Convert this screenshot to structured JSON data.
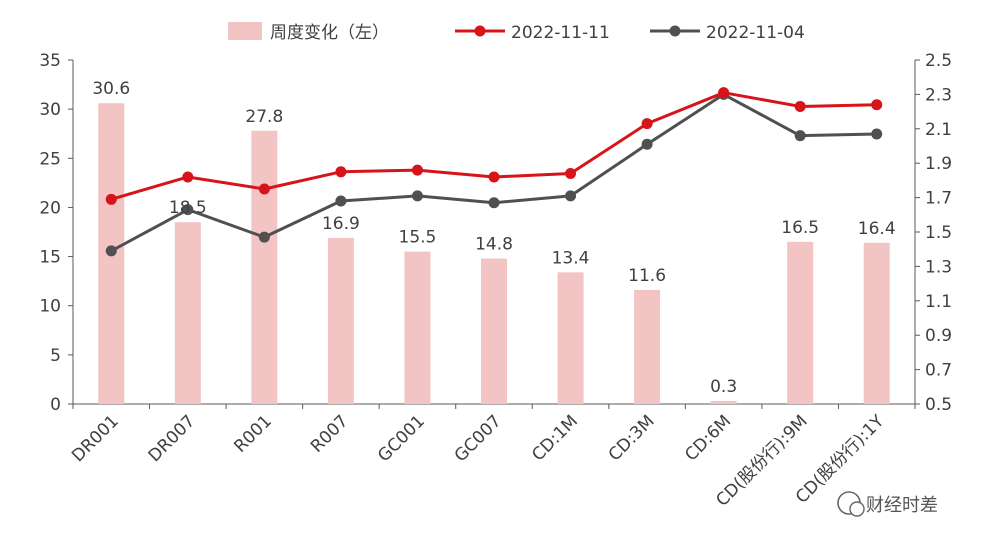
{
  "chart_data": {
    "type": "bar+line",
    "categories": [
      "DR001",
      "DR007",
      "R001",
      "R007",
      "GC001",
      "GC007",
      "CD:1M",
      "CD:3M",
      "CD:6M",
      "CD(股份行):9M",
      "CD(股份行):1Y"
    ],
    "bar_series": {
      "name": "周度变化（左）",
      "values": [
        30.6,
        18.5,
        27.8,
        16.9,
        15.5,
        14.8,
        13.4,
        11.6,
        0.3,
        16.5,
        16.4
      ],
      "color": "#f2c4c4"
    },
    "line_series": [
      {
        "name": "2022-11-11",
        "values": [
          1.69,
          1.82,
          1.75,
          1.85,
          1.86,
          1.82,
          1.84,
          2.13,
          2.31,
          2.23,
          2.24
        ],
        "color": "#d7141a"
      },
      {
        "name": "2022-11-04",
        "values": [
          1.39,
          1.63,
          1.47,
          1.68,
          1.71,
          1.67,
          1.71,
          2.01,
          2.3,
          2.06,
          2.07
        ],
        "color": "#505050"
      }
    ],
    "left_axis": {
      "min": 0,
      "max": 35,
      "ticks": [
        "0",
        "5",
        "10",
        "15",
        "20",
        "25",
        "30",
        "35"
      ]
    },
    "right_axis": {
      "min": 0.5,
      "max": 2.5,
      "ticks": [
        "0.5",
        "0.7",
        "0.9",
        "1.1",
        "1.3",
        "1.5",
        "1.7",
        "1.9",
        "2.1",
        "2.3",
        "2.5"
      ]
    },
    "legend_placement": "top-center",
    "grid": false
  },
  "watermark": {
    "text": "财经时差"
  }
}
